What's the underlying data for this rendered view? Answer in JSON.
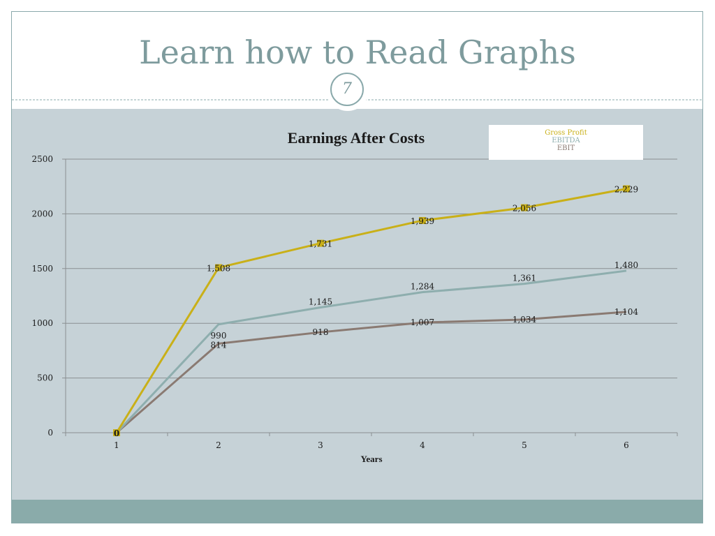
{
  "slide": {
    "title": "Learn how to Read Graphs",
    "page_number": "7"
  },
  "colors": {
    "accent": "#8aa9ab",
    "gross_profit": "#c9b018",
    "ebitda": "#8eaeae",
    "ebit": "#8a7a72"
  },
  "chart_data": {
    "type": "line",
    "title": "Earnings After Costs",
    "xlabel": "Years",
    "ylabel": "",
    "categories": [
      "1",
      "2",
      "3",
      "4",
      "5",
      "6"
    ],
    "ylim": [
      0,
      2500
    ],
    "yticks": [
      "0",
      "500",
      "1000",
      "1500",
      "2000",
      "2500"
    ],
    "grid": true,
    "legend_position": "top-right",
    "series": [
      {
        "name": "Gross Profit",
        "values": [
          0,
          1508,
          1731,
          1939,
          2056,
          2229
        ],
        "labels": [
          "0",
          "1,508",
          "1,731",
          "1,939",
          "2,056",
          "2,229"
        ],
        "marker": "square"
      },
      {
        "name": "EBITDA",
        "values": [
          0,
          990,
          1145,
          1284,
          1361,
          1480
        ],
        "labels": [
          "0",
          "990",
          "1,145",
          "1,284",
          "1,361",
          "1,480"
        ],
        "marker": "none"
      },
      {
        "name": "EBIT",
        "values": [
          0,
          814,
          918,
          1007,
          1034,
          1104
        ],
        "labels": [
          "0",
          "814",
          "918",
          "1,007",
          "1,034",
          "1,104"
        ],
        "marker": "none"
      }
    ]
  }
}
